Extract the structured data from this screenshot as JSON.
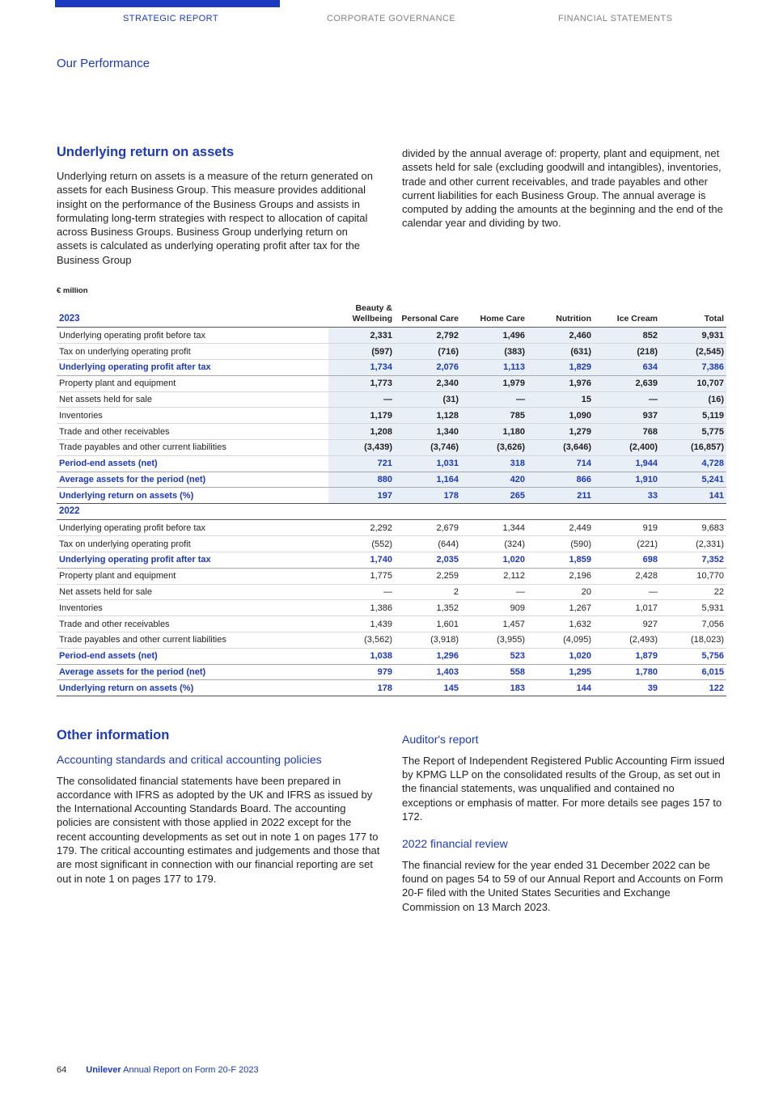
{
  "colors": {
    "accent": "#1C39C0",
    "nav_inactive": "#808285",
    "table_highlight_bg": "#E9EFF7"
  },
  "nav": {
    "items": [
      {
        "label": "STRATEGIC REPORT",
        "active": true
      },
      {
        "label": "CORPORATE GOVERNANCE",
        "active": false
      },
      {
        "label": "FINANCIAL STATEMENTS",
        "active": false
      }
    ]
  },
  "section_label": "Our Performance",
  "intro": {
    "heading": "Underlying return on assets",
    "col1": "Underlying return on assets is a measure of the return generated on assets for each Business Group. This measure provides additional insight on the performance of the Business Groups and assists in formulating long-term strategies with respect to allocation of capital across Business Groups. Business Group underlying return on assets is calculated as underlying operating profit after tax for the Business Group",
    "col2": "divided by the annual average of: property, plant and equipment, net assets held for sale (excluding goodwill and intangibles), inventories, trade and other current receivables, and trade payables and other current liabilities for each Business Group. The annual average is computed by adding the amounts at the beginning and the end of the calendar year and dividing by two."
  },
  "table": {
    "unit_label": "€ million",
    "columns": [
      "Beauty & Wellbeing",
      "Personal Care",
      "Home Care",
      "Nutrition",
      "Ice Cream",
      "Total"
    ],
    "sections": [
      {
        "year": "2023",
        "highlight": true,
        "rows": [
          {
            "label": "Underlying operating profit before tax",
            "style": "normal",
            "values": [
              "2,331",
              "2,792",
              "1,496",
              "2,460",
              "852",
              "9,931"
            ]
          },
          {
            "label": "Tax on underlying operating profit",
            "style": "normal",
            "values": [
              "(597)",
              "(716)",
              "(383)",
              "(631)",
              "(218)",
              "(2,545)"
            ]
          },
          {
            "label": "Underlying operating profit after tax",
            "style": "key",
            "values": [
              "1,734",
              "2,076",
              "1,113",
              "1,829",
              "634",
              "7,386"
            ]
          },
          {
            "label": "Property plant and equipment",
            "style": "normal",
            "values": [
              "1,773",
              "2,340",
              "1,979",
              "1,976",
              "2,639",
              "10,707"
            ]
          },
          {
            "label": "Net assets held for sale",
            "style": "normal",
            "values": [
              "—",
              "(31)",
              "—",
              "15",
              "—",
              "(16)"
            ]
          },
          {
            "label": "Inventories",
            "style": "normal",
            "values": [
              "1,179",
              "1,128",
              "785",
              "1,090",
              "937",
              "5,119"
            ]
          },
          {
            "label": "Trade and other receivables",
            "style": "normal",
            "values": [
              "1,208",
              "1,340",
              "1,180",
              "1,279",
              "768",
              "5,775"
            ]
          },
          {
            "label": "Trade payables and other current liabilities",
            "style": "normal",
            "values": [
              "(3,439)",
              "(3,746)",
              "(3,626)",
              "(3,646)",
              "(2,400)",
              "(16,857)"
            ]
          },
          {
            "label": "Period-end assets (net)",
            "style": "key",
            "values": [
              "721",
              "1,031",
              "318",
              "714",
              "1,944",
              "4,728"
            ]
          },
          {
            "label": "Average assets for the period (net)",
            "style": "key",
            "values": [
              "880",
              "1,164",
              "420",
              "866",
              "1,910",
              "5,241"
            ]
          },
          {
            "label": "Underlying return on assets (%)",
            "style": "key",
            "values": [
              "197",
              "178",
              "265",
              "211",
              "33",
              "141"
            ]
          }
        ]
      },
      {
        "year": "2022",
        "highlight": false,
        "rows": [
          {
            "label": "Underlying operating profit before tax",
            "style": "normal",
            "values": [
              "2,292",
              "2,679",
              "1,344",
              "2,449",
              "919",
              "9,683"
            ]
          },
          {
            "label": "Tax on underlying operating profit",
            "style": "normal",
            "values": [
              "(552)",
              "(644)",
              "(324)",
              "(590)",
              "(221)",
              "(2,331)"
            ]
          },
          {
            "label": "Underlying operating profit after tax",
            "style": "key",
            "values": [
              "1,740",
              "2,035",
              "1,020",
              "1,859",
              "698",
              "7,352"
            ]
          },
          {
            "label": "Property plant and equipment",
            "style": "normal",
            "values": [
              "1,775",
              "2,259",
              "2,112",
              "2,196",
              "2,428",
              "10,770"
            ]
          },
          {
            "label": "Net assets held for sale",
            "style": "normal",
            "values": [
              "—",
              "2",
              "—",
              "20",
              "—",
              "22"
            ]
          },
          {
            "label": "Inventories",
            "style": "normal",
            "values": [
              "1,386",
              "1,352",
              "909",
              "1,267",
              "1,017",
              "5,931"
            ]
          },
          {
            "label": "Trade and other receivables",
            "style": "normal",
            "values": [
              "1,439",
              "1,601",
              "1,457",
              "1,632",
              "927",
              "7,056"
            ]
          },
          {
            "label": "Trade payables and other current liabilities",
            "style": "normal",
            "values": [
              "(3,562)",
              "(3,918)",
              "(3,955)",
              "(4,095)",
              "(2,493)",
              "(18,023)"
            ]
          },
          {
            "label": "Period-end assets (net)",
            "style": "key",
            "values": [
              "1,038",
              "1,296",
              "523",
              "1,020",
              "1,879",
              "5,756"
            ]
          },
          {
            "label": "Average assets for the period (net)",
            "style": "key",
            "values": [
              "979",
              "1,403",
              "558",
              "1,295",
              "1,780",
              "6,015"
            ]
          },
          {
            "label": "Underlying return on assets (%)",
            "style": "key",
            "values": [
              "178",
              "145",
              "183",
              "144",
              "39",
              "122"
            ]
          }
        ]
      }
    ]
  },
  "other": {
    "heading": "Other information",
    "left": {
      "subheading": "Accounting standards and critical accounting policies",
      "body": "The consolidated financial statements have been prepared in accordance with IFRS as adopted by the UK and IFRS as issued by the International Accounting Standards Board. The accounting policies are consistent with those applied in 2022 except for the recent accounting developments as set out in note 1 on pages 177 to 179. The critical accounting estimates and judgements and those that are most significant in connection with our financial reporting are set out in note 1 on pages 177 to 179."
    },
    "right": [
      {
        "subheading": "Auditor's report",
        "body": "The Report of Independent Registered Public Accounting Firm issued by KPMG LLP on the consolidated results of the Group, as set out in the financial statements, was unqualified and contained no exceptions or emphasis of matter. For more details see pages 157 to 172."
      },
      {
        "subheading": "2022 financial review",
        "body": "The financial review for the year ended 31 December 2022 can be found on pages 54 to 59 of our Annual Report and Accounts on Form 20-F filed with the United States Securities and Exchange Commission on 13 March 2023."
      }
    ]
  },
  "footer": {
    "page_number": "64",
    "brand": "Unilever",
    "report_title": " Annual Report on Form 20-F 2023"
  }
}
